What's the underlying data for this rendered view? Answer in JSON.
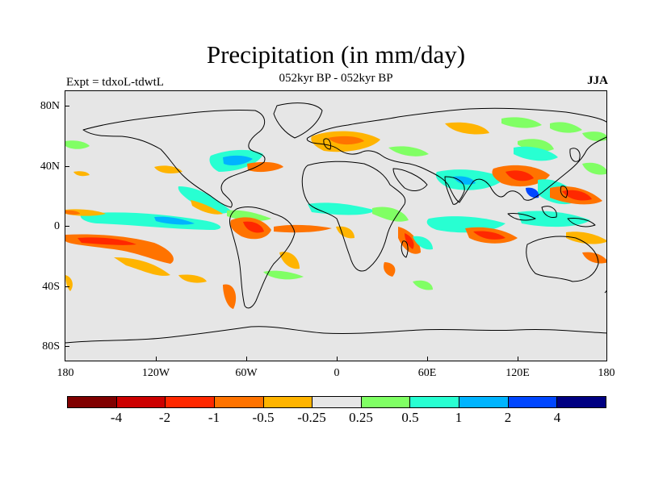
{
  "header": {
    "title": "Precipitation (in mm/day)",
    "subtitle": "052kyr BP - 052kyr BP",
    "experiment": "Expt = tdxoL-tdwtL",
    "season": "JJA"
  },
  "map": {
    "projection": "cylindrical equidistant",
    "extent": {
      "lon": [
        -180,
        180
      ],
      "lat": [
        -90,
        90
      ]
    },
    "background_color": "#e6e6e6",
    "lat_labels": [
      "80N",
      "40N",
      "0",
      "40S",
      "80S"
    ],
    "lon_labels": [
      "180",
      "120W",
      "60W",
      "0",
      "60E",
      "120E",
      "180"
    ],
    "field": "precipitation anomaly",
    "units": "mm/day"
  },
  "legend": {
    "colors": [
      "#800000",
      "#cc0000",
      "#ff2800",
      "#ff7300",
      "#ffb400",
      "#e6e6e6",
      "#80ff64",
      "#28ffd2",
      "#00b4ff",
      "#0046ff",
      "#000082"
    ],
    "levels": [
      "-4",
      "-2",
      "-1",
      "-0.5",
      "-0.25",
      "0.25",
      "0.5",
      "1",
      "2",
      "4"
    ]
  }
}
